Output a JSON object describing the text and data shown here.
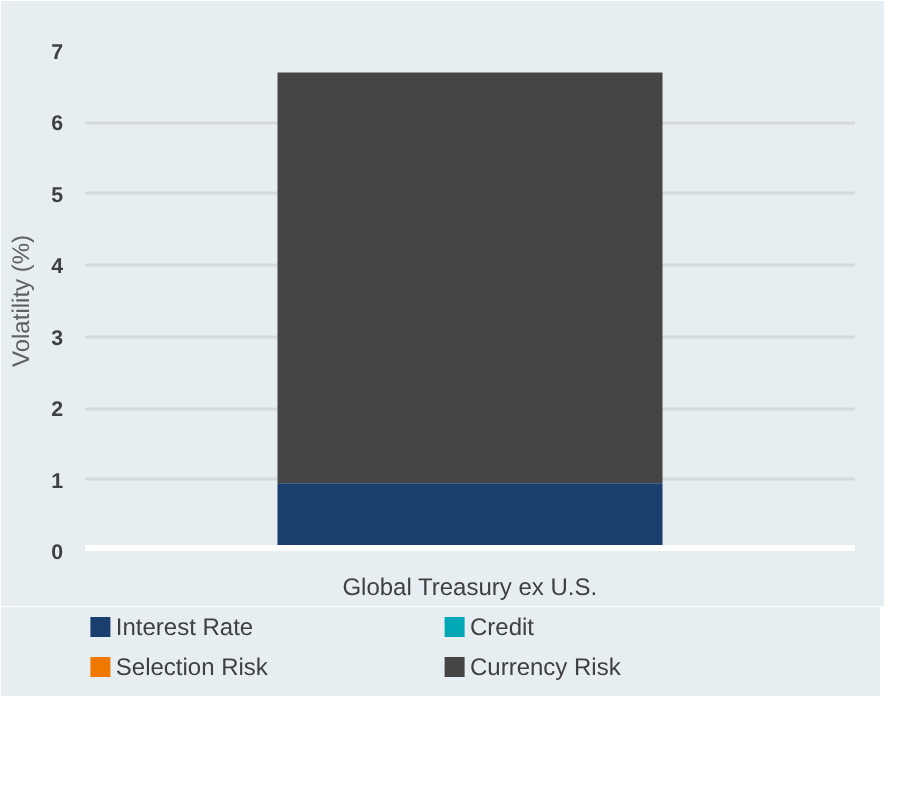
{
  "chart_data": {
    "type": "bar",
    "stacked": true,
    "ylabel": "Volatility (%)",
    "categories": [
      "Global Treasury ex U.S."
    ],
    "series": [
      {
        "name": "Interest Rate",
        "color": "#1a3e6e",
        "values": [
          0.95
        ]
      },
      {
        "name": "Credit",
        "color": "#00a8b5",
        "values": [
          0
        ]
      },
      {
        "name": "Selection Risk",
        "color": "#f07800",
        "values": [
          0
        ]
      },
      {
        "name": "Currency Risk",
        "color": "#454545",
        "values": [
          5.75
        ]
      }
    ],
    "ylim": [
      0,
      7
    ],
    "yticks": [
      0,
      1,
      2,
      3,
      4,
      5,
      6,
      7
    ],
    "grid": "y",
    "legend": "bottom"
  }
}
